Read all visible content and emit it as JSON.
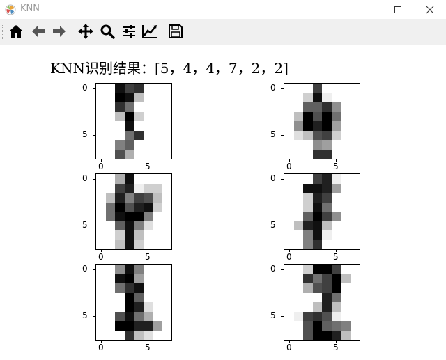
{
  "window": {
    "title": "KNN",
    "icon": "matplotlib-logo-icon",
    "controls": [
      "minimize-icon",
      "maximize-icon",
      "close-icon"
    ]
  },
  "toolbar": {
    "tools": [
      {
        "name": "home",
        "icon": "home-icon"
      },
      {
        "name": "back",
        "icon": "arrow-left-icon"
      },
      {
        "name": "forward",
        "icon": "arrow-right-icon"
      },
      {
        "name": "pan",
        "icon": "move-icon"
      },
      {
        "name": "zoom",
        "icon": "magnifier-icon"
      },
      {
        "name": "configure-subplots",
        "icon": "sliders-icon"
      },
      {
        "name": "edit-axes",
        "icon": "line-chart-icon"
      },
      {
        "name": "save",
        "icon": "floppy-disk-icon"
      }
    ]
  },
  "figure": {
    "title": "KNN识别结果：[5，4，4，7，2，2]"
  },
  "chart_data": [
    {
      "type": "heatmap",
      "colormap": "gray_r",
      "vmin": 0,
      "vmax": 16,
      "x_ticks": [
        "0",
        "5"
      ],
      "y_ticks": [
        "0",
        "5"
      ],
      "matrix": [
        [
          0,
          0,
          15,
          12,
          13,
          0,
          0,
          0
        ],
        [
          0,
          0,
          16,
          15,
          4,
          0,
          0,
          0
        ],
        [
          0,
          0,
          13,
          9,
          0,
          0,
          0,
          0
        ],
        [
          0,
          0,
          4,
          16,
          3,
          0,
          0,
          0
        ],
        [
          0,
          0,
          0,
          15,
          0,
          0,
          0,
          0
        ],
        [
          0,
          0,
          0,
          9,
          13,
          0,
          0,
          0
        ],
        [
          0,
          0,
          8,
          10,
          0,
          0,
          0,
          0
        ],
        [
          0,
          0,
          11,
          5,
          0,
          0,
          0,
          0
        ]
      ]
    },
    {
      "type": "heatmap",
      "colormap": "gray_r",
      "vmin": 0,
      "vmax": 16,
      "x_ticks": [
        "0",
        "5"
      ],
      "y_ticks": [
        "0",
        "5"
      ],
      "matrix": [
        [
          0,
          0,
          0,
          12,
          0,
          0,
          0,
          0
        ],
        [
          0,
          0,
          3,
          15,
          1,
          0,
          0,
          0
        ],
        [
          0,
          0,
          10,
          10,
          13,
          7,
          0,
          0
        ],
        [
          0,
          4,
          16,
          11,
          16,
          9,
          0,
          0
        ],
        [
          0,
          7,
          16,
          14,
          16,
          6,
          0,
          0
        ],
        [
          0,
          2,
          4,
          11,
          12,
          3,
          0,
          0
        ],
        [
          0,
          0,
          0,
          7,
          6,
          0,
          0,
          0
        ],
        [
          0,
          0,
          0,
          13,
          13,
          0,
          0,
          0
        ]
      ]
    },
    {
      "type": "heatmap",
      "colormap": "gray_r",
      "vmin": 0,
      "vmax": 16,
      "x_ticks": [
        "0",
        "5"
      ],
      "y_ticks": [
        "0",
        "5"
      ],
      "matrix": [
        [
          0,
          0,
          5,
          15,
          0,
          0,
          0,
          0
        ],
        [
          0,
          0,
          12,
          14,
          1,
          3,
          3,
          0
        ],
        [
          0,
          4,
          14,
          8,
          12,
          11,
          4,
          0
        ],
        [
          0,
          9,
          16,
          11,
          14,
          15,
          3,
          0
        ],
        [
          0,
          9,
          15,
          16,
          16,
          8,
          0,
          0
        ],
        [
          0,
          0,
          10,
          15,
          8,
          2,
          0,
          0
        ],
        [
          0,
          0,
          3,
          15,
          4,
          0,
          0,
          0
        ],
        [
          0,
          0,
          4,
          15,
          3,
          0,
          0,
          0
        ]
      ]
    },
    {
      "type": "heatmap",
      "colormap": "gray_r",
      "vmin": 0,
      "vmax": 16,
      "x_ticks": [
        "0",
        "5"
      ],
      "y_ticks": [
        "0",
        "5"
      ],
      "matrix": [
        [
          0,
          0,
          0,
          12,
          14,
          1,
          0,
          0
        ],
        [
          0,
          0,
          15,
          15,
          14,
          6,
          0,
          0
        ],
        [
          0,
          0,
          3,
          14,
          12,
          0,
          0,
          0
        ],
        [
          0,
          0,
          3,
          15,
          9,
          0,
          0,
          0
        ],
        [
          0,
          0,
          10,
          16,
          12,
          7,
          0,
          0
        ],
        [
          0,
          4,
          14,
          15,
          4,
          0,
          0,
          0
        ],
        [
          0,
          0,
          8,
          15,
          1,
          0,
          0,
          0
        ],
        [
          0,
          0,
          8,
          13,
          0,
          0,
          0,
          0
        ]
      ]
    },
    {
      "type": "heatmap",
      "colormap": "gray_r",
      "vmin": 0,
      "vmax": 16,
      "x_ticks": [
        "0",
        "5"
      ],
      "y_ticks": [
        "0",
        "5"
      ],
      "matrix": [
        [
          0,
          0,
          7,
          15,
          8,
          0,
          0,
          0
        ],
        [
          0,
          0,
          15,
          16,
          6,
          0,
          0,
          0
        ],
        [
          0,
          0,
          9,
          13,
          15,
          0,
          0,
          0
        ],
        [
          0,
          0,
          0,
          16,
          10,
          0,
          0,
          0
        ],
        [
          0,
          0,
          0,
          16,
          14,
          2,
          0,
          0
        ],
        [
          0,
          0,
          11,
          15,
          9,
          5,
          0,
          0
        ],
        [
          0,
          0,
          16,
          16,
          14,
          14,
          6,
          0
        ],
        [
          0,
          0,
          0,
          13,
          4,
          2,
          0,
          0
        ]
      ]
    },
    {
      "type": "heatmap",
      "colormap": "gray_r",
      "vmin": 0,
      "vmax": 16,
      "x_ticks": [
        "0",
        "5"
      ],
      "y_ticks": [
        "0",
        "5"
      ],
      "matrix": [
        [
          0,
          0,
          3,
          16,
          16,
          12,
          0,
          0
        ],
        [
          0,
          0,
          13,
          9,
          12,
          16,
          4,
          0
        ],
        [
          0,
          0,
          5,
          11,
          12,
          16,
          0,
          0
        ],
        [
          0,
          0,
          0,
          0,
          14,
          9,
          0,
          0
        ],
        [
          0,
          0,
          0,
          4,
          14,
          4,
          0,
          0
        ],
        [
          0,
          1,
          12,
          13,
          11,
          1,
          0,
          0
        ],
        [
          0,
          0,
          11,
          16,
          10,
          9,
          8,
          0
        ],
        [
          0,
          0,
          11,
          16,
          16,
          14,
          4,
          0
        ]
      ]
    }
  ]
}
